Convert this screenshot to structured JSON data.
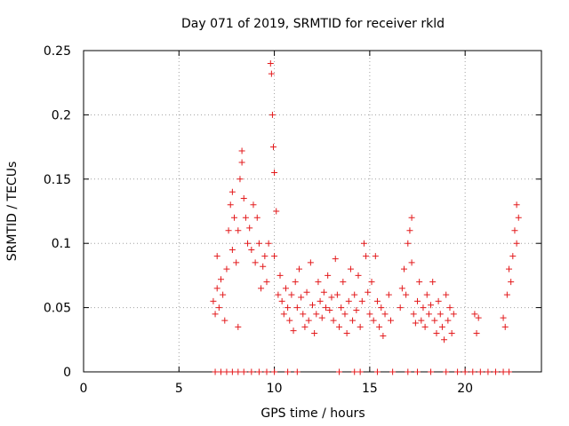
{
  "chart_data": {
    "type": "scatter",
    "title": "Day 071 of 2019, SRMTID for receiver rkld",
    "xlabel": "GPS time / hours",
    "ylabel": "SRMTID / TECUs",
    "xlim": [
      0,
      24
    ],
    "ylim": [
      0,
      0.25
    ],
    "x_ticks": [
      0,
      5,
      10,
      15,
      20
    ],
    "y_ticks": [
      0,
      0.05,
      0.1,
      0.15,
      0.2,
      0.25
    ],
    "x_tick_labels": [
      "0",
      "5",
      "10",
      "15",
      "20"
    ],
    "y_tick_labels": [
      "0",
      "0.05",
      "0.1",
      "0.15",
      "0.2",
      "0.25"
    ],
    "grid": true,
    "marker": "+",
    "color": "#e31a1c",
    "series": [
      {
        "name": "SRMTID",
        "points": [
          [
            6.8,
            0.055
          ],
          [
            6.9,
            0.045
          ],
          [
            7.0,
            0.09
          ],
          [
            7.0,
            0.065
          ],
          [
            7.1,
            0.05
          ],
          [
            7.2,
            0.072
          ],
          [
            7.3,
            0.06
          ],
          [
            7.4,
            0.04
          ],
          [
            7.5,
            0.08
          ],
          [
            7.6,
            0.11
          ],
          [
            7.7,
            0.13
          ],
          [
            7.8,
            0.095
          ],
          [
            7.8,
            0.14
          ],
          [
            7.9,
            0.12
          ],
          [
            8.0,
            0.085
          ],
          [
            8.1,
            0.035
          ],
          [
            8.1,
            0.11
          ],
          [
            8.2,
            0.15
          ],
          [
            8.3,
            0.172
          ],
          [
            8.3,
            0.163
          ],
          [
            8.4,
            0.135
          ],
          [
            8.5,
            0.12
          ],
          [
            8.6,
            0.1
          ],
          [
            8.7,
            0.112
          ],
          [
            8.8,
            0.095
          ],
          [
            8.9,
            0.13
          ],
          [
            9.0,
            0.085
          ],
          [
            9.1,
            0.12
          ],
          [
            9.2,
            0.1
          ],
          [
            9.3,
            0.065
          ],
          [
            9.4,
            0.082
          ],
          [
            9.5,
            0.09
          ],
          [
            9.6,
            0.07
          ],
          [
            9.7,
            0.1
          ],
          [
            9.8,
            0.24
          ],
          [
            9.85,
            0.232
          ],
          [
            9.9,
            0.2
          ],
          [
            9.95,
            0.175
          ],
          [
            10.0,
            0.155
          ],
          [
            10.0,
            0.09
          ],
          [
            10.1,
            0.125
          ],
          [
            10.2,
            0.06
          ],
          [
            10.3,
            0.075
          ],
          [
            10.4,
            0.055
          ],
          [
            10.5,
            0.045
          ],
          [
            10.6,
            0.065
          ],
          [
            10.7,
            0.05
          ],
          [
            10.8,
            0.04
          ],
          [
            10.9,
            0.06
          ],
          [
            11.0,
            0.032
          ],
          [
            11.1,
            0.07
          ],
          [
            11.2,
            0.05
          ],
          [
            11.3,
            0.08
          ],
          [
            11.4,
            0.058
          ],
          [
            11.5,
            0.045
          ],
          [
            11.6,
            0.035
          ],
          [
            11.7,
            0.062
          ],
          [
            11.8,
            0.04
          ],
          [
            11.9,
            0.085
          ],
          [
            12.0,
            0.052
          ],
          [
            12.1,
            0.03
          ],
          [
            12.2,
            0.045
          ],
          [
            12.3,
            0.07
          ],
          [
            12.4,
            0.055
          ],
          [
            12.5,
            0.042
          ],
          [
            12.6,
            0.062
          ],
          [
            12.7,
            0.05
          ],
          [
            12.8,
            0.075
          ],
          [
            12.9,
            0.048
          ],
          [
            13.0,
            0.058
          ],
          [
            13.1,
            0.04
          ],
          [
            13.2,
            0.088
          ],
          [
            13.3,
            0.06
          ],
          [
            13.4,
            0.035
          ],
          [
            13.5,
            0.05
          ],
          [
            13.6,
            0.07
          ],
          [
            13.7,
            0.045
          ],
          [
            13.8,
            0.03
          ],
          [
            13.9,
            0.055
          ],
          [
            14.0,
            0.08
          ],
          [
            14.1,
            0.04
          ],
          [
            14.2,
            0.06
          ],
          [
            14.3,
            0.048
          ],
          [
            14.4,
            0.075
          ],
          [
            14.5,
            0.035
          ],
          [
            14.6,
            0.055
          ],
          [
            14.7,
            0.1
          ],
          [
            14.8,
            0.09
          ],
          [
            14.9,
            0.062
          ],
          [
            15.0,
            0.045
          ],
          [
            15.1,
            0.07
          ],
          [
            15.2,
            0.04
          ],
          [
            15.3,
            0.09
          ],
          [
            15.4,
            0.055
          ],
          [
            15.5,
            0.035
          ],
          [
            15.6,
            0.05
          ],
          [
            15.7,
            0.028
          ],
          [
            15.8,
            0.045
          ],
          [
            16.0,
            0.06
          ],
          [
            16.1,
            0.04
          ],
          [
            16.6,
            0.05
          ],
          [
            16.7,
            0.065
          ],
          [
            16.8,
            0.08
          ],
          [
            16.9,
            0.06
          ],
          [
            17.0,
            0.1
          ],
          [
            17.1,
            0.11
          ],
          [
            17.2,
            0.12
          ],
          [
            17.2,
            0.085
          ],
          [
            17.3,
            0.045
          ],
          [
            17.4,
            0.038
          ],
          [
            17.5,
            0.055
          ],
          [
            17.6,
            0.07
          ],
          [
            17.7,
            0.04
          ],
          [
            17.8,
            0.05
          ],
          [
            17.9,
            0.035
          ],
          [
            18.0,
            0.06
          ],
          [
            18.1,
            0.045
          ],
          [
            18.2,
            0.052
          ],
          [
            18.3,
            0.07
          ],
          [
            18.4,
            0.04
          ],
          [
            18.5,
            0.03
          ],
          [
            18.6,
            0.055
          ],
          [
            18.7,
            0.045
          ],
          [
            18.8,
            0.035
          ],
          [
            18.9,
            0.025
          ],
          [
            19.0,
            0.06
          ],
          [
            19.1,
            0.04
          ],
          [
            19.2,
            0.05
          ],
          [
            19.3,
            0.03
          ],
          [
            19.4,
            0.045
          ],
          [
            20.5,
            0.045
          ],
          [
            20.6,
            0.03
          ],
          [
            20.7,
            0.042
          ],
          [
            22.0,
            0.042
          ],
          [
            22.1,
            0.035
          ],
          [
            22.2,
            0.06
          ],
          [
            22.3,
            0.08
          ],
          [
            22.4,
            0.07
          ],
          [
            22.5,
            0.09
          ],
          [
            22.6,
            0.11
          ],
          [
            22.7,
            0.13
          ],
          [
            22.7,
            0.1
          ],
          [
            22.8,
            0.12
          ],
          [
            6.9,
            0
          ],
          [
            7.2,
            0
          ],
          [
            7.5,
            0
          ],
          [
            7.8,
            0
          ],
          [
            8.1,
            0
          ],
          [
            8.4,
            0
          ],
          [
            8.8,
            0
          ],
          [
            9.2,
            0
          ],
          [
            9.6,
            0
          ],
          [
            10.0,
            0
          ],
          [
            10.7,
            0
          ],
          [
            11.2,
            0
          ],
          [
            13.4,
            0
          ],
          [
            14.2,
            0
          ],
          [
            14.5,
            0
          ],
          [
            15.4,
            0
          ],
          [
            16.2,
            0
          ],
          [
            17.0,
            0
          ],
          [
            17.5,
            0
          ],
          [
            18.2,
            0
          ],
          [
            19.0,
            0
          ],
          [
            19.6,
            0
          ],
          [
            20.0,
            0
          ],
          [
            20.4,
            0
          ],
          [
            20.8,
            0
          ],
          [
            21.2,
            0
          ],
          [
            21.6,
            0
          ],
          [
            22.0,
            0
          ],
          [
            22.3,
            0
          ]
        ]
      }
    ]
  }
}
